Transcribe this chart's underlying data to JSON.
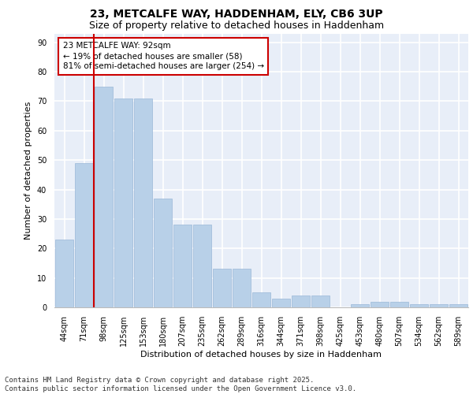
{
  "title_line1": "23, METCALFE WAY, HADDENHAM, ELY, CB6 3UP",
  "title_line2": "Size of property relative to detached houses in Haddenham",
  "xlabel": "Distribution of detached houses by size in Haddenham",
  "ylabel": "Number of detached properties",
  "categories": [
    "44sqm",
    "71sqm",
    "98sqm",
    "125sqm",
    "153sqm",
    "180sqm",
    "207sqm",
    "235sqm",
    "262sqm",
    "289sqm",
    "316sqm",
    "344sqm",
    "371sqm",
    "398sqm",
    "425sqm",
    "453sqm",
    "480sqm",
    "507sqm",
    "534sqm",
    "562sqm",
    "589sqm"
  ],
  "values": [
    23,
    49,
    75,
    71,
    71,
    37,
    28,
    28,
    13,
    13,
    5,
    3,
    4,
    4,
    0,
    1,
    2,
    2,
    1,
    1,
    1
  ],
  "bar_color": "#b8d0e8",
  "bar_edge_color": "#9ab8d8",
  "annotation_text": "23 METCALFE WAY: 92sqm\n← 19% of detached houses are smaller (58)\n81% of semi-detached houses are larger (254) →",
  "annotation_box_color": "#ffffff",
  "annotation_box_edge": "#cc0000",
  "red_line_color": "#cc0000",
  "ylim": [
    0,
    93
  ],
  "yticks": [
    0,
    10,
    20,
    30,
    40,
    50,
    60,
    70,
    80,
    90
  ],
  "background_color": "#e8eef8",
  "grid_color": "#ffffff",
  "footer_text": "Contains HM Land Registry data © Crown copyright and database right 2025.\nContains public sector information licensed under the Open Government Licence v3.0.",
  "title_fontsize": 10,
  "subtitle_fontsize": 9,
  "axis_label_fontsize": 8,
  "tick_fontsize": 7,
  "annotation_fontsize": 7.5,
  "footer_fontsize": 6.5
}
